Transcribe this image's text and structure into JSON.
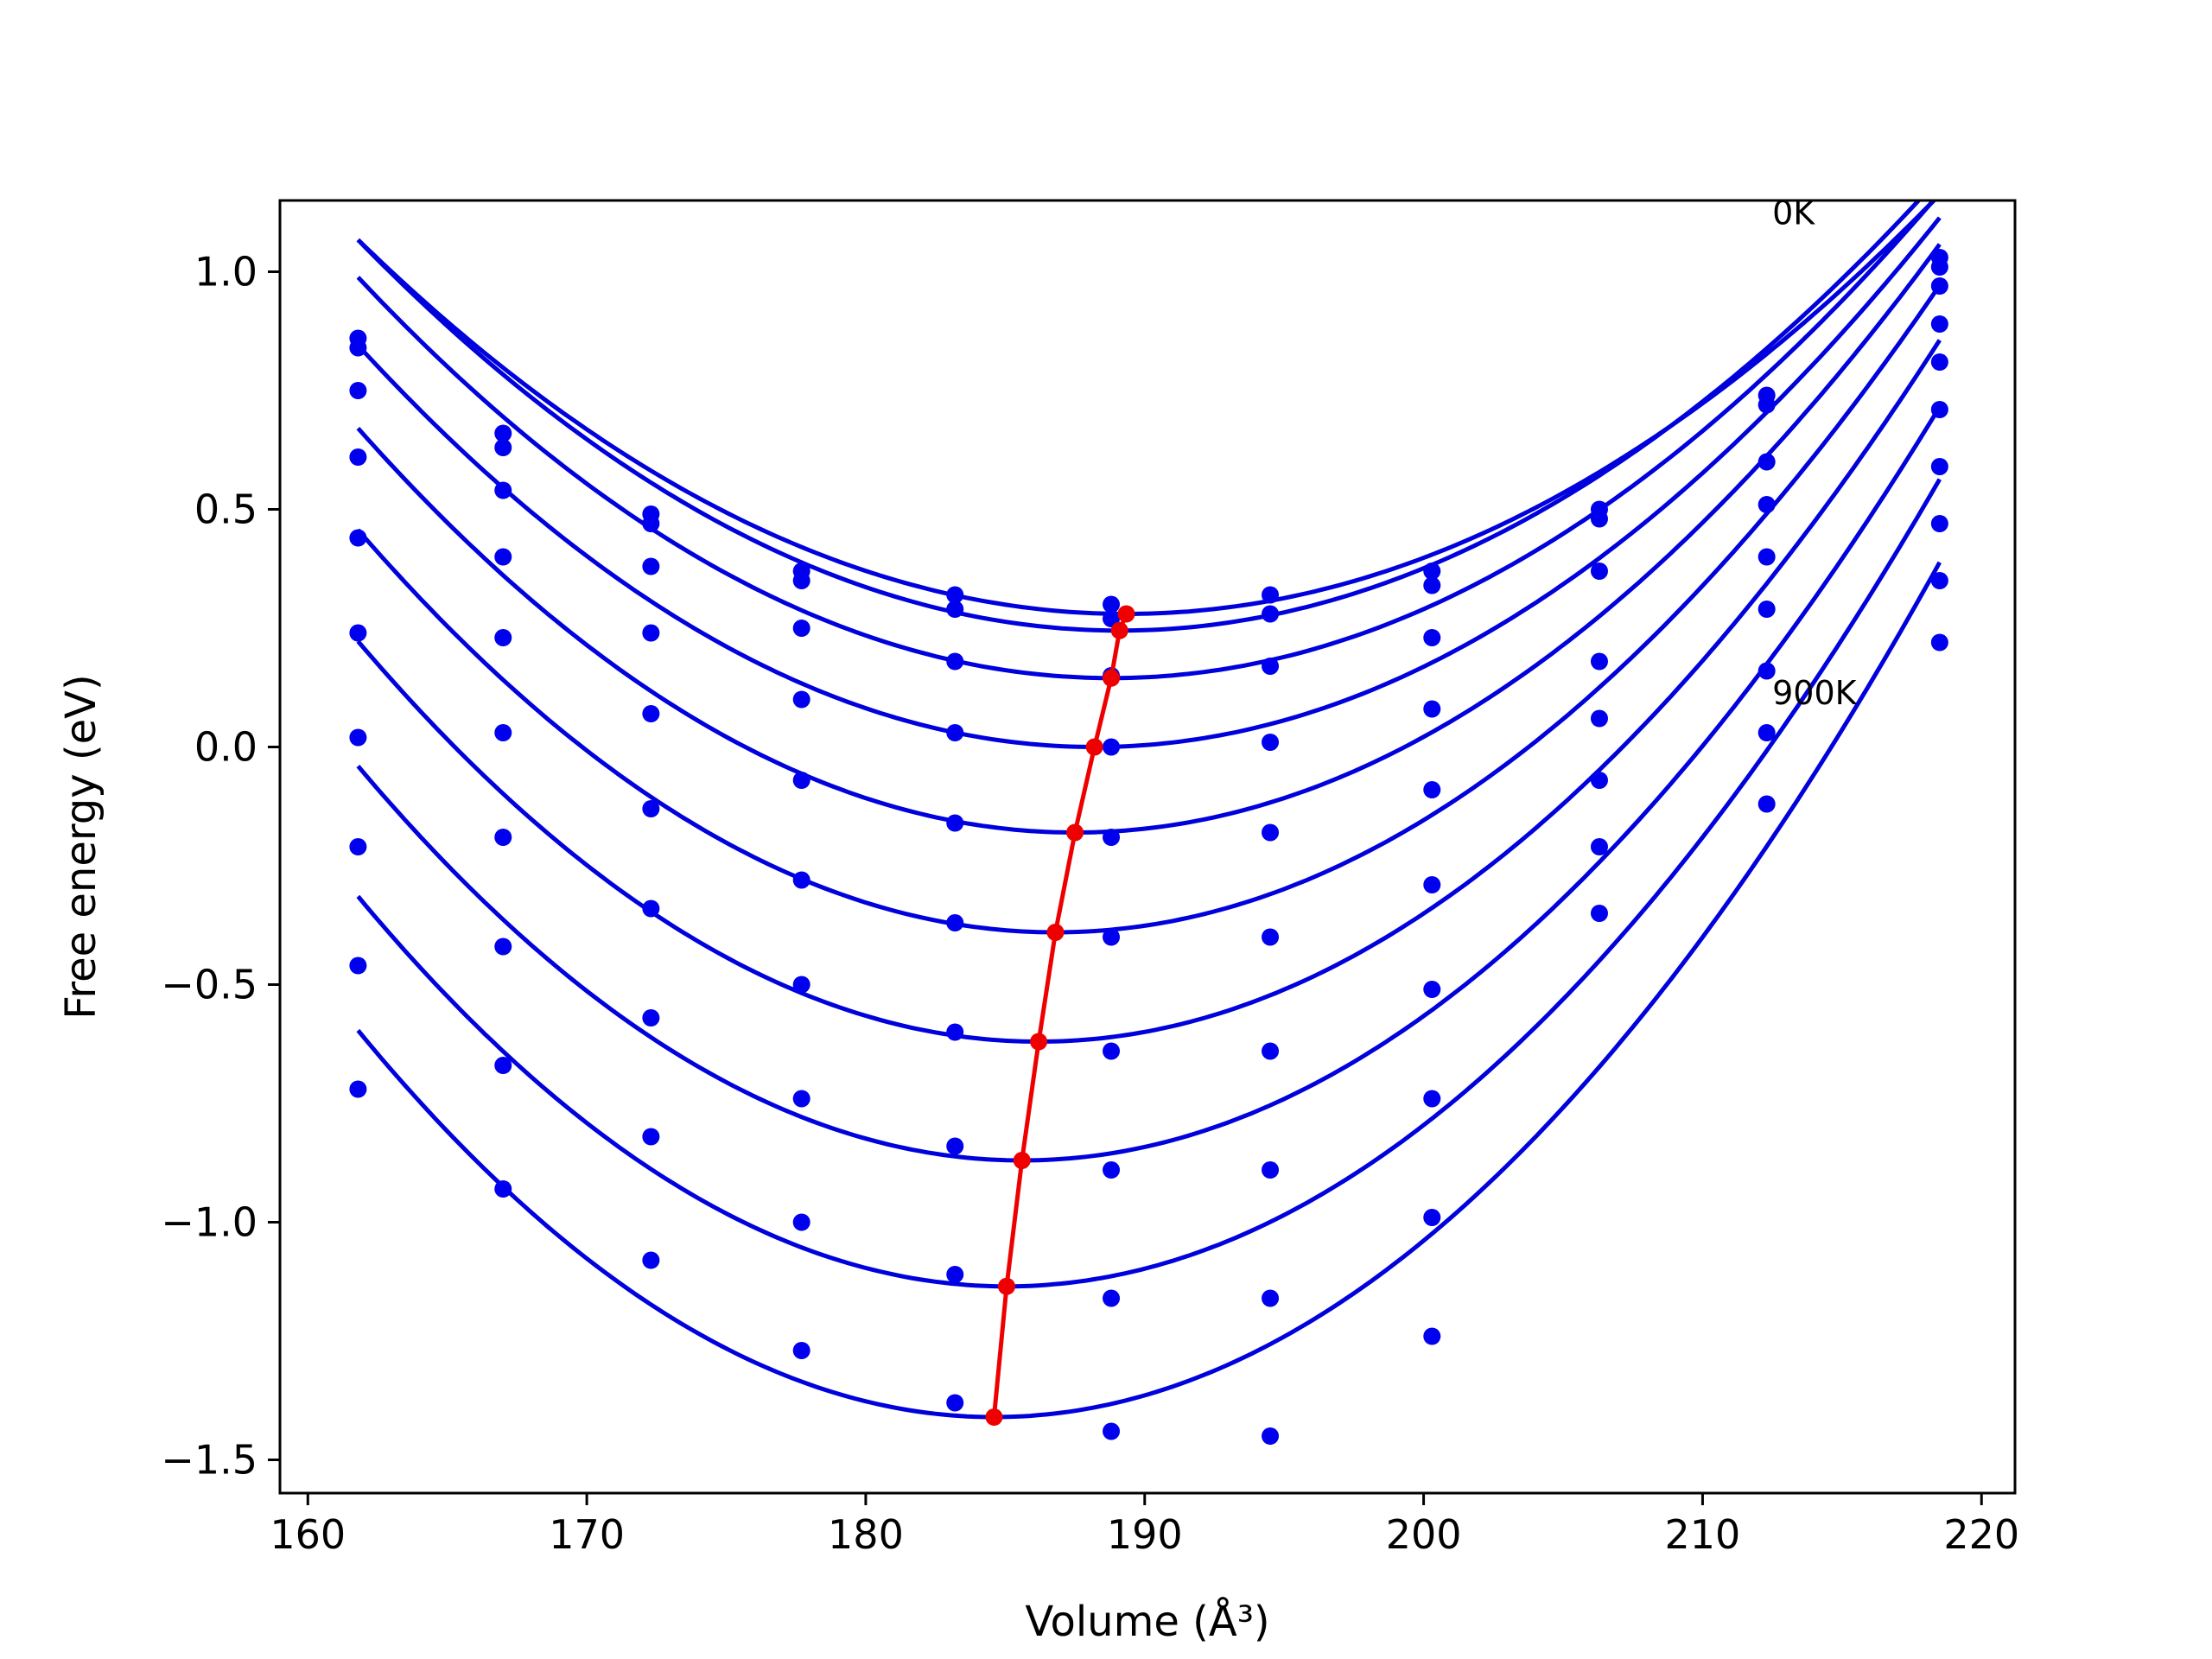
{
  "chart_data": {
    "type": "scatter",
    "xlabel": "Volume (Å³)",
    "ylabel": "Free energy (eV)",
    "xlim": [
      159,
      221.2
    ],
    "ylim": [
      -1.57,
      1.15
    ],
    "x_ticks": [
      160,
      170,
      180,
      190,
      200,
      210,
      220
    ],
    "y_ticks": [
      1.0,
      0.5,
      0.0,
      -0.5,
      -1.0,
      -1.5
    ],
    "y_tick_labels": [
      "1.0",
      "0.5",
      "0.0",
      "−0.5",
      "−1.0",
      "−1.5"
    ],
    "grid": false,
    "annotations": [
      {
        "text": "0K",
        "x": 212.5,
        "y": 1.1
      },
      {
        "text": "900K",
        "x": 212.5,
        "y": 0.09
      }
    ],
    "colors": {
      "points": "#0000ee",
      "fits": "#0000dd",
      "minimum_line": "#ee0000"
    },
    "volumes": [
      161.8,
      167.0,
      172.3,
      177.7,
      183.2,
      188.8,
      194.5,
      200.3,
      206.3,
      212.3,
      218.5
    ],
    "series": [
      {
        "points": [
          0.86,
          0.66,
          0.49,
          0.37,
          0.32,
          0.3,
          0.32,
          0.37,
          0.5,
          0.74,
          1.03
        ],
        "fit": {
          "a": 0.001038,
          "v0": 189.34,
          "e0": 0.28
        }
      },
      {
        "points": [
          0.84,
          0.63,
          0.47,
          0.35,
          0.29,
          0.27,
          0.28,
          0.34,
          0.48,
          0.72,
          1.01
        ],
        "fit": {
          "a": 0.001103,
          "v0": 189.1,
          "e0": 0.245
        }
      },
      {
        "points": [
          0.75,
          0.54,
          0.38,
          0.25,
          0.18,
          0.15,
          0.17,
          0.23,
          0.37,
          0.6,
          0.97
        ],
        "fit": {
          "a": 0.001157,
          "v0": 188.8,
          "e0": 0.145
        }
      },
      {
        "points": [
          0.61,
          0.4,
          0.24,
          0.1,
          0.03,
          0.0,
          0.01,
          0.08,
          0.18,
          0.51,
          0.89
        ],
        "fit": {
          "a": 0.001213,
          "v0": 188.2,
          "e0": 0.0
        }
      },
      {
        "points": [
          0.44,
          0.23,
          0.07,
          -0.07,
          -0.16,
          -0.19,
          -0.18,
          -0.09,
          0.06,
          0.4,
          0.81
        ],
        "fit": {
          "a": 0.001288,
          "v0": 187.5,
          "e0": -0.18
        }
      },
      {
        "points": [
          0.24,
          0.03,
          -0.13,
          -0.28,
          -0.37,
          -0.4,
          -0.4,
          -0.29,
          -0.07,
          0.29,
          0.71
        ],
        "fit": {
          "a": 0.001355,
          "v0": 186.8,
          "e0": -0.39
        }
      },
      {
        "points": [
          0.02,
          -0.19,
          -0.34,
          -0.5,
          -0.6,
          -0.64,
          -0.64,
          -0.51,
          -0.21,
          0.16,
          0.59
        ],
        "fit": {
          "a": 0.001415,
          "v0": 186.2,
          "e0": -0.62
        }
      },
      {
        "points": [
          -0.21,
          -0.42,
          -0.57,
          -0.74,
          -0.84,
          -0.89,
          -0.89,
          -0.74,
          -0.35,
          0.03,
          0.47
        ],
        "fit": {
          "a": 0.001465,
          "v0": 185.6,
          "e0": -0.87
        }
      },
      {
        "points": [
          -0.46,
          -0.67,
          -0.82,
          -1.0,
          -1.11,
          -1.16,
          -1.16,
          -0.99,
          null,
          -0.12,
          0.35
        ],
        "fit": {
          "a": 0.001518,
          "v0": 185.05,
          "e0": -1.135
        }
      },
      {
        "points": [
          -0.72,
          -0.93,
          -1.08,
          -1.27,
          -1.38,
          -1.44,
          -1.45,
          -1.24,
          null,
          null,
          0.22
        ],
        "fit": {
          "a": 0.001565,
          "v0": 184.6,
          "e0": -1.41
        }
      }
    ],
    "minimum_curve": {
      "x": [
        189.34,
        189.1,
        188.8,
        188.2,
        187.5,
        186.8,
        186.2,
        185.6,
        185.05,
        184.6
      ],
      "y": [
        0.28,
        0.245,
        0.145,
        0.0,
        -0.18,
        -0.39,
        -0.62,
        -0.87,
        -1.135,
        -1.41
      ]
    }
  }
}
